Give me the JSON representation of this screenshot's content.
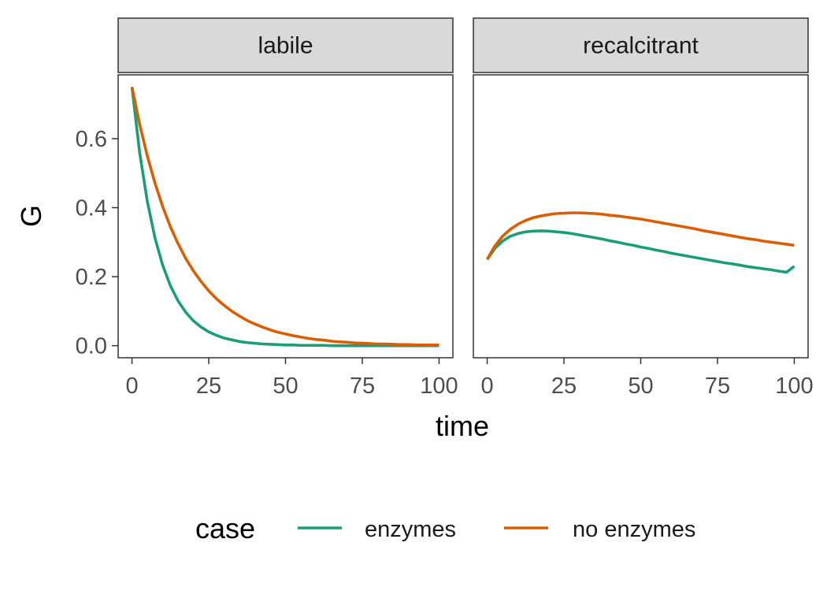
{
  "chart_data": {
    "type": "line",
    "xlabel": "time",
    "ylabel": "G",
    "xlim": [
      -4.5,
      104.5
    ],
    "ylim": [
      -0.035,
      0.785
    ],
    "x_ticks": [
      0,
      25,
      50,
      75,
      100
    ],
    "x_tick_labels": [
      "0",
      "25",
      "50",
      "75",
      "100"
    ],
    "y_ticks": [
      0.0,
      0.2,
      0.4,
      0.6
    ],
    "y_tick_labels": [
      "0.0",
      "0.2",
      "0.4",
      "0.6"
    ],
    "grid": false,
    "legend": {
      "title": "case",
      "position": "bottom",
      "entries": [
        {
          "label": "enzymes",
          "color": "#1B9E77"
        },
        {
          "label": "no enzymes",
          "color": "#D95F02"
        }
      ]
    },
    "panels": [
      {
        "label": "labile",
        "series": [
          {
            "name": "enzymes",
            "color": "#1B9E77",
            "x": [
              0,
              2.5,
              5,
              7.5,
              10,
              12.5,
              15,
              17.5,
              20,
              22.5,
              25,
              27.5,
              30,
              32.5,
              35,
              37.5,
              40,
              42.5,
              45,
              47.5,
              50,
              52.5,
              55,
              57.5,
              60,
              62.5,
              65,
              67.5,
              70,
              72.5,
              75,
              77.5,
              80,
              82.5,
              85,
              87.5,
              90,
              92.5,
              95,
              97.5,
              100
            ],
            "y": [
              0.75,
              0.56,
              0.418,
              0.312,
              0.233,
              0.174,
              0.13,
              0.097,
              0.072,
              0.054,
              0.04,
              0.03,
              0.022,
              0.017,
              0.012,
              0.009,
              0.007,
              0.005,
              0.004,
              0.003,
              0.002,
              0.002,
              0.001,
              0.001,
              0.001,
              0.001,
              0,
              0,
              0,
              0,
              0,
              0,
              0,
              0,
              0,
              0,
              0,
              0,
              0,
              0,
              0
            ]
          },
          {
            "name": "no enzymes",
            "color": "#D95F02",
            "x": [
              0,
              2.5,
              5,
              7.5,
              10,
              12.5,
              15,
              17.5,
              20,
              22.5,
              25,
              27.5,
              30,
              32.5,
              35,
              37.5,
              40,
              42.5,
              45,
              47.5,
              50,
              52.5,
              55,
              57.5,
              60,
              62.5,
              65,
              67.5,
              70,
              72.5,
              75,
              77.5,
              80,
              82.5,
              85,
              87.5,
              90,
              92.5,
              95,
              97.5,
              100
            ],
            "y": [
              0.75,
              0.642,
              0.55,
              0.471,
              0.403,
              0.345,
              0.296,
              0.253,
              0.217,
              0.186,
              0.159,
              0.136,
              0.117,
              0.1,
              0.086,
              0.073,
              0.063,
              0.054,
              0.046,
              0.039,
              0.034,
              0.029,
              0.025,
              0.021,
              0.018,
              0.016,
              0.013,
              0.011,
              0.01,
              0.008,
              0.007,
              0.006,
              0.005,
              0.005,
              0.004,
              0.003,
              0.003,
              0.002,
              0.002,
              0.002,
              0.002
            ]
          }
        ]
      },
      {
        "label": "recalcitrant",
        "series": [
          {
            "name": "enzymes",
            "color": "#1B9E77",
            "x": [
              0,
              2.5,
              5,
              7.5,
              10,
              12.5,
              15,
              17.5,
              20,
              22.5,
              25,
              27.5,
              30,
              32.5,
              35,
              37.5,
              40,
              42.5,
              45,
              47.5,
              50,
              52.5,
              55,
              57.5,
              60,
              62.5,
              65,
              67.5,
              70,
              72.5,
              75,
              77.5,
              80,
              82.5,
              85,
              87.5,
              90,
              92.5,
              95,
              97.5,
              100
            ],
            "y": [
              0.25,
              0.282,
              0.303,
              0.317,
              0.325,
              0.33,
              0.332,
              0.333,
              0.332,
              0.33,
              0.328,
              0.325,
              0.321,
              0.317,
              0.313,
              0.309,
              0.304,
              0.3,
              0.295,
              0.291,
              0.286,
              0.282,
              0.277,
              0.273,
              0.268,
              0.264,
              0.26,
              0.256,
              0.252,
              0.248,
              0.244,
              0.24,
              0.237,
              0.233,
              0.229,
              0.226,
              0.223,
              0.22,
              0.216,
              0.213,
              0.23
            ]
          },
          {
            "name": "no enzymes",
            "color": "#D95F02",
            "x": [
              0,
              2.5,
              5,
              7.5,
              10,
              12.5,
              15,
              17.5,
              20,
              22.5,
              25,
              27.5,
              30,
              32.5,
              35,
              37.5,
              40,
              42.5,
              45,
              47.5,
              50,
              52.5,
              55,
              57.5,
              60,
              62.5,
              65,
              67.5,
              70,
              72.5,
              75,
              77.5,
              80,
              82.5,
              85,
              87.5,
              90,
              92.5,
              95,
              97.5,
              100
            ],
            "y": [
              0.25,
              0.289,
              0.317,
              0.337,
              0.352,
              0.363,
              0.371,
              0.376,
              0.38,
              0.383,
              0.384,
              0.385,
              0.385,
              0.384,
              0.383,
              0.381,
              0.378,
              0.376,
              0.373,
              0.37,
              0.367,
              0.363,
              0.359,
              0.355,
              0.351,
              0.347,
              0.343,
              0.339,
              0.334,
              0.33,
              0.326,
              0.322,
              0.318,
              0.314,
              0.31,
              0.307,
              0.303,
              0.3,
              0.297,
              0.294,
              0.291
            ]
          }
        ]
      }
    ]
  }
}
